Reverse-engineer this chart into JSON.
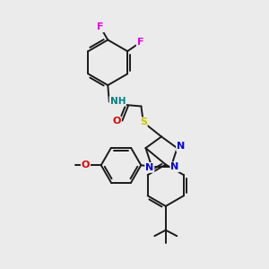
{
  "bg_color": "#ebebeb",
  "bond_color": "#1a1a1a",
  "fig_size": [
    3.0,
    3.0
  ],
  "dpi": 100,
  "atom_colors": {
    "F": "#e000e0",
    "N": "#0000e0",
    "O": "#e00000",
    "S": "#c8c800",
    "C": "#1a1a1a",
    "H": "#008080"
  }
}
